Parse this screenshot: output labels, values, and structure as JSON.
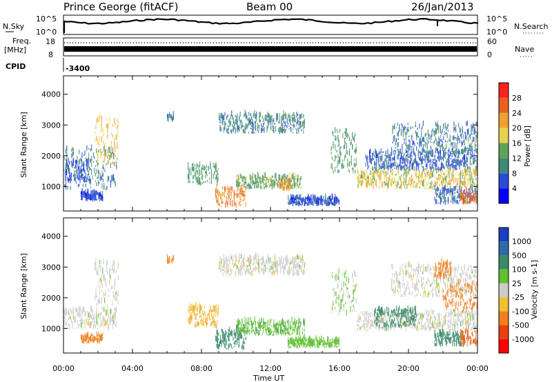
{
  "header": {
    "station": "Prince George (fitACF)",
    "beam": "Beam 00",
    "date": "26/Jan/2013"
  },
  "top_panel": {
    "left_label": "N.Sky",
    "right_label": "N.Search",
    "left_ticks": [
      "10^5",
      "10^0"
    ],
    "right_ticks": [
      "10^5",
      "10^0"
    ]
  },
  "freq_panel": {
    "left_label_1": "Freq.",
    "left_label_2": "[MHz]",
    "left_ticks": [
      "18",
      "8"
    ],
    "right_label": "Nave",
    "right_ticks": [
      "60",
      "0"
    ]
  },
  "cpid": {
    "label": "CPID",
    "value": "-3400"
  },
  "x_axis": {
    "label": "Time UT",
    "ticks": [
      "00:00",
      "04:00",
      "08:00",
      "12:00",
      "16:00",
      "20:00",
      "00:00"
    ]
  },
  "y_axis": {
    "label": "Slant Range [km]",
    "ticks": [
      "1000",
      "2000",
      "3000",
      "4000"
    ]
  },
  "power_scale": {
    "label": "Power [dB]",
    "ticks": [
      "4",
      "8",
      "12",
      "16",
      "20",
      "24",
      "28"
    ],
    "colors": [
      "#0000ff",
      "#2a4bd7",
      "#3d8a7a",
      "#5fa35a",
      "#e8d050",
      "#f0a030",
      "#e86020",
      "#ff2020"
    ]
  },
  "velocity_scale": {
    "label": "Velocity [m s-1]",
    "ticks": [
      "1000",
      "500",
      "100",
      "25",
      "-25",
      "-100",
      "-500",
      "-1000"
    ],
    "colors": [
      "#1a3fbf",
      "#2e6aa8",
      "#3a8a6a",
      "#5fc030",
      "#cccccc",
      "#f0c030",
      "#f08020",
      "#e84010",
      "#ff0000"
    ]
  },
  "chart_data": [
    {
      "type": "heatmap",
      "title": "Power [dB]",
      "xlabel": "Time UT",
      "ylabel": "Slant Range [km]",
      "xlim": [
        "00:00",
        "24:00"
      ],
      "ylim": [
        200,
        4600
      ],
      "zlim": [
        0,
        32
      ],
      "regions": [
        {
          "t0": 0.0,
          "t1": 3.1,
          "r0": 850,
          "r1": 2200,
          "value": 10
        },
        {
          "t0": 0.1,
          "t1": 1.6,
          "r0": 1100,
          "r1": 1800,
          "value": 6
        },
        {
          "t0": 1.8,
          "t1": 3.2,
          "r0": 1700,
          "r1": 3200,
          "value": 20
        },
        {
          "t0": 1.0,
          "t1": 2.3,
          "r0": 500,
          "r1": 750,
          "value": 6
        },
        {
          "t0": 6.0,
          "t1": 6.4,
          "r0": 3100,
          "r1": 3300,
          "value": 8
        },
        {
          "t0": 7.2,
          "t1": 9.0,
          "r0": 1000,
          "r1": 1700,
          "value": 12
        },
        {
          "t0": 8.8,
          "t1": 10.6,
          "r0": 300,
          "r1": 900,
          "value": 24
        },
        {
          "t0": 10.0,
          "t1": 13.8,
          "r0": 900,
          "r1": 1300,
          "value": 14
        },
        {
          "t0": 12.5,
          "t1": 13.2,
          "r0": 850,
          "r1": 1150,
          "value": 22
        },
        {
          "t0": 9.0,
          "t1": 14.0,
          "r0": 2700,
          "r1": 3300,
          "value": 10
        },
        {
          "t0": 13.0,
          "t1": 16.0,
          "r0": 350,
          "r1": 600,
          "value": 6
        },
        {
          "t0": 15.5,
          "t1": 17.0,
          "r0": 1400,
          "r1": 2800,
          "value": 12
        },
        {
          "t0": 17.0,
          "t1": 24.0,
          "r0": 900,
          "r1": 1500,
          "value": 18
        },
        {
          "t0": 17.5,
          "t1": 24.0,
          "r0": 1500,
          "r1": 2100,
          "value": 7
        },
        {
          "t0": 19.0,
          "t1": 24.0,
          "r0": 2000,
          "r1": 3000,
          "value": 9
        },
        {
          "t0": 21.5,
          "t1": 24.0,
          "r0": 400,
          "r1": 900,
          "value": 8
        },
        {
          "t0": 23.0,
          "t1": 24.0,
          "r0": 400,
          "r1": 800,
          "value": 26
        }
      ]
    },
    {
      "type": "heatmap",
      "title": "Velocity [m s-1]",
      "xlabel": "Time UT",
      "ylabel": "Slant Range [km]",
      "xlim": [
        "00:00",
        "24:00"
      ],
      "ylim": [
        200,
        4600
      ],
      "zlim": [
        -1000,
        1000
      ],
      "regions": [
        {
          "t0": 0.0,
          "t1": 3.1,
          "r0": 950,
          "r1": 1600,
          "value": 0
        },
        {
          "t0": 1.8,
          "t1": 3.2,
          "r0": 1700,
          "r1": 3200,
          "value": 0
        },
        {
          "t0": 1.0,
          "t1": 2.3,
          "r0": 500,
          "r1": 750,
          "value": -400
        },
        {
          "t0": 6.0,
          "t1": 6.4,
          "r0": 3100,
          "r1": 3300,
          "value": -400
        },
        {
          "t0": 7.2,
          "t1": 9.0,
          "r0": 1000,
          "r1": 1700,
          "value": -80
        },
        {
          "t0": 8.8,
          "t1": 10.6,
          "r0": 300,
          "r1": 900,
          "value": 150
        },
        {
          "t0": 10.0,
          "t1": 14.0,
          "r0": 750,
          "r1": 1200,
          "value": 80
        },
        {
          "t0": 9.0,
          "t1": 14.0,
          "r0": 2700,
          "r1": 3300,
          "value": 0
        },
        {
          "t0": 13.0,
          "t1": 16.0,
          "r0": 350,
          "r1": 600,
          "value": 60
        },
        {
          "t0": 15.5,
          "t1": 17.0,
          "r0": 1400,
          "r1": 2800,
          "value": 30
        },
        {
          "t0": 17.0,
          "t1": 24.0,
          "r0": 900,
          "r1": 1500,
          "value": 0
        },
        {
          "t0": 18.0,
          "t1": 20.5,
          "r0": 1000,
          "r1": 1600,
          "value": 150
        },
        {
          "t0": 19.0,
          "t1": 24.0,
          "r0": 2000,
          "r1": 3000,
          "value": 0
        },
        {
          "t0": 21.5,
          "t1": 22.5,
          "r0": 2600,
          "r1": 3100,
          "value": -300
        },
        {
          "t0": 22.0,
          "t1": 24.0,
          "r0": 1500,
          "r1": 2400,
          "value": -300
        },
        {
          "t0": 21.5,
          "t1": 23.2,
          "r0": 400,
          "r1": 800,
          "value": 150
        },
        {
          "t0": 23.0,
          "t1": 24.0,
          "r0": 400,
          "r1": 900,
          "value": -500
        }
      ]
    }
  ]
}
